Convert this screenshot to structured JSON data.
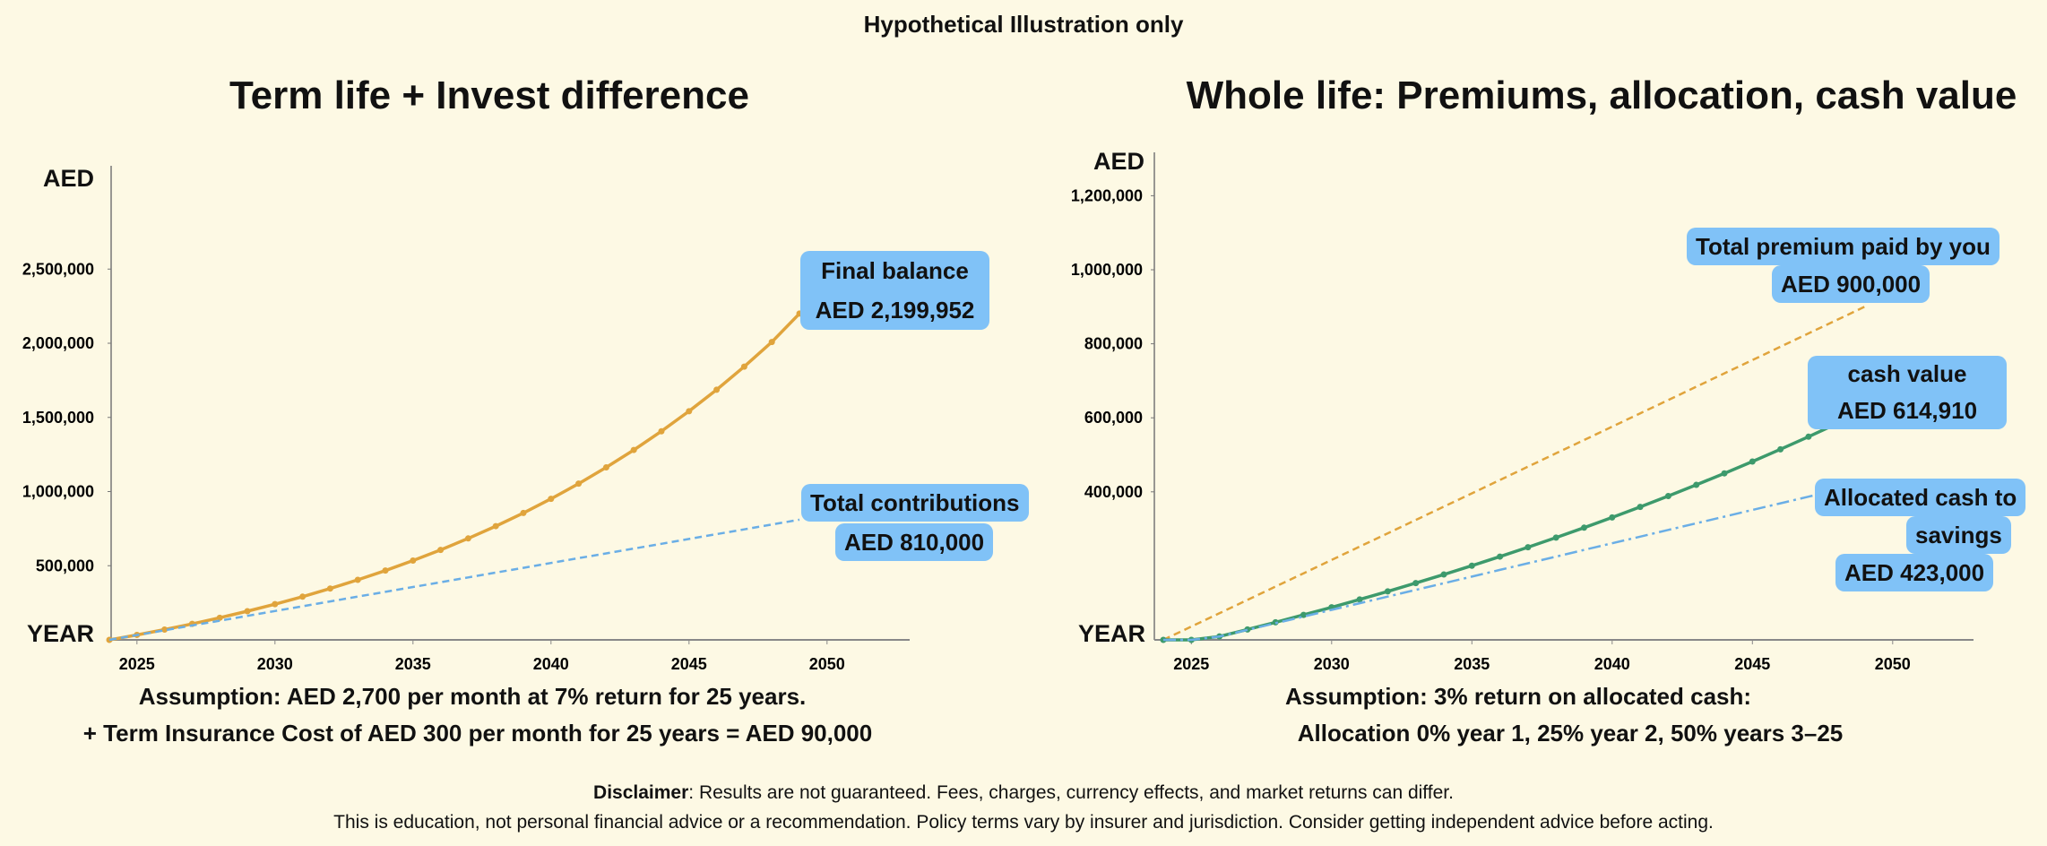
{
  "header": {
    "title": "Hypothetical Illustration only"
  },
  "colors": {
    "background": "#fdf9e4",
    "orange": "#e0a43c",
    "blue": "#6aaee6",
    "green": "#3d9a6c",
    "callout": "#80c2f7"
  },
  "chart_data": [
    {
      "type": "line",
      "title": "Term life + Invest difference",
      "xlabel": "YEAR",
      "ylabel": "AED",
      "xlim": [
        2024,
        2052
      ],
      "ylim": [
        0,
        2500000
      ],
      "x_ticks": [
        "2025",
        "2030",
        "2035",
        "2040",
        "2045",
        "2050"
      ],
      "y_ticks": [
        "500,000",
        "1,000,000",
        "1,500,000",
        "2,000,000",
        "2,500,000"
      ],
      "x": [
        2024,
        2025,
        2026,
        2027,
        2028,
        2029,
        2030,
        2031,
        2032,
        2033,
        2034,
        2035,
        2036,
        2037,
        2038,
        2039,
        2040,
        2041,
        2042,
        2043,
        2044,
        2045,
        2046,
        2047,
        2048,
        2049
      ],
      "series": [
        {
          "key": "balance",
          "style": "solid-markers",
          "color": "#e0a43c",
          "values": [
            0,
            33460,
            69343,
            107815,
            149070,
            193305,
            240740,
            291200,
            346150,
            404640,
            467330,
            534580,
            606680,
            684000,
            766900,
            855800,
            951100,
            1053400,
            1163000,
            1280500,
            1406500,
            1541700,
            1686600,
            1842000,
            2008500,
            2199952
          ]
        },
        {
          "key": "contributions",
          "style": "dashed",
          "color": "#6aaee6",
          "values": [
            0,
            32400,
            64800,
            97200,
            129600,
            162000,
            194400,
            226800,
            259200,
            291600,
            324000,
            356400,
            388800,
            421200,
            453600,
            486000,
            518400,
            550800,
            583200,
            615600,
            648000,
            680400,
            712800,
            745200,
            777600,
            810000
          ]
        }
      ],
      "annotations": {
        "final_balance": {
          "line1": "Final balance",
          "line2": "AED 2,199,952"
        },
        "total_contributions": {
          "line1": "Total contributions",
          "line2": "AED 810,000"
        }
      },
      "assumption": {
        "line1": "Assumption: AED 2,700 per month at 7% return for 25 years.",
        "line2": "+ Term Insurance Cost of AED 300 per month for 25 years = AED 90,000"
      }
    },
    {
      "type": "line",
      "title": "Whole life: Premiums, allocation, cash value",
      "xlabel": "YEAR",
      "ylabel": "AED",
      "xlim": [
        2024,
        2052
      ],
      "ylim": [
        0,
        1200000
      ],
      "x_ticks": [
        "2025",
        "2030",
        "2035",
        "2040",
        "2045",
        "2050"
      ],
      "y_ticks": [
        "400,000",
        "600,000",
        "800,000",
        "1,000,000",
        "1,200,000"
      ],
      "x": [
        2024,
        2025,
        2026,
        2027,
        2028,
        2029,
        2030,
        2031,
        2032,
        2033,
        2034,
        2035,
        2036,
        2037,
        2038,
        2039,
        2040,
        2041,
        2042,
        2043,
        2044,
        2045,
        2046,
        2047,
        2048,
        2049
      ],
      "series": [
        {
          "key": "premium",
          "style": "dashed",
          "color": "#e0a43c",
          "values": [
            0,
            36000,
            72000,
            108000,
            144000,
            180000,
            216000,
            252000,
            288000,
            324000,
            360000,
            396000,
            432000,
            468000,
            504000,
            540000,
            576000,
            612000,
            648000,
            684000,
            720000,
            756000,
            792000,
            828000,
            864000,
            900000
          ]
        },
        {
          "key": "cash_value",
          "style": "solid-markers",
          "color": "#3d9a6c",
          "values": [
            0,
            0,
            9270,
            28088,
            47471,
            67435,
            87998,
            109178,
            130993,
            153463,
            176607,
            200445,
            224998,
            250288,
            276337,
            303167,
            330802,
            359266,
            388584,
            418782,
            449885,
            481922,
            514920,
            548908,
            583915,
            614910
          ]
        },
        {
          "key": "allocated",
          "style": "dashdot",
          "color": "#6aaee6",
          "values": [
            0,
            0,
            9000,
            27000,
            45000,
            63000,
            81000,
            99000,
            117000,
            135000,
            153000,
            171000,
            189000,
            207000,
            225000,
            243000,
            261000,
            279000,
            297000,
            315000,
            333000,
            351000,
            369000,
            387000,
            405000,
            423000
          ]
        }
      ],
      "annotations": {
        "total_premium": {
          "line1": "Total premium paid by you",
          "line2": "AED 900,000"
        },
        "cash_value": {
          "line1": "cash value",
          "line2": "AED 614,910"
        },
        "allocated": {
          "line1": "Allocated cash to",
          "line2": "savings",
          "line3": "AED 423,000"
        }
      },
      "assumption": {
        "line1": "Assumption: 3% return on allocated cash:",
        "line2": "Allocation 0% year 1, 25% year 2, 50% years 3–25"
      }
    }
  ],
  "disclaimer": {
    "label": "Disclaimer",
    "text1": ": Results are not guaranteed. Fees, charges, currency effects, and market returns can differ.",
    "text2": "This is education, not personal financial advice or a recommendation. Policy terms vary by insurer and jurisdiction. Consider getting independent advice before acting."
  }
}
